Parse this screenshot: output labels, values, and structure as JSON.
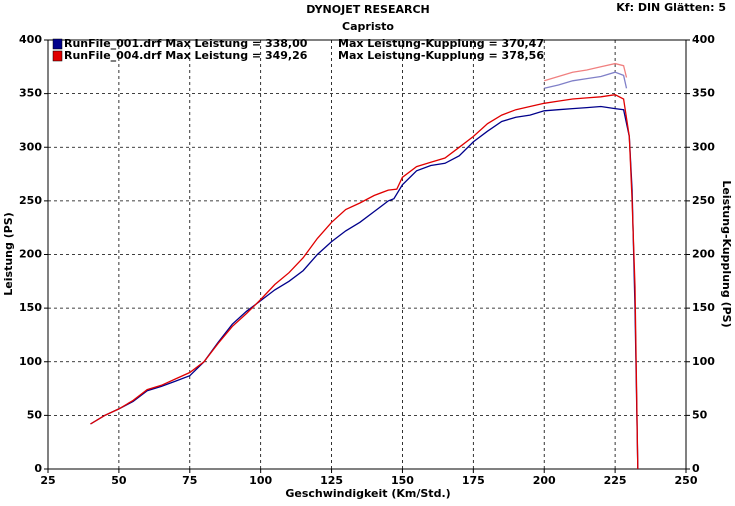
{
  "chart_data": {
    "type": "line",
    "title": "DYNOJET RESEARCH",
    "subtitle": "Capristo",
    "settings_label": "Kf: DIN  Glätten: 5",
    "x_label": "Geschwindigkeit (Km/Std.)",
    "y_label": "Leistung (PS)",
    "y2_label": "Leistung-Kupplung (PS)",
    "xlim": [
      25,
      250
    ],
    "xticks": [
      25,
      50,
      75,
      100,
      125,
      150,
      175,
      200,
      225,
      250
    ],
    "ylim": [
      0,
      400
    ],
    "yticks": [
      0,
      50,
      100,
      150,
      200,
      250,
      300,
      350,
      400
    ],
    "y2lim": [
      0,
      400
    ],
    "y2ticks": [
      0,
      50,
      100,
      150,
      200,
      250,
      300,
      350,
      400
    ],
    "grid": true,
    "series": [
      {
        "name": "RunFile_001.drf Max Leistung = 338,00",
        "color": "#00008b",
        "x": [
          40,
          45,
          50,
          55,
          60,
          65,
          70,
          75,
          80,
          85,
          90,
          95,
          100,
          105,
          110,
          115,
          120,
          125,
          130,
          135,
          140,
          145,
          147,
          150,
          155,
          160,
          165,
          170,
          175,
          180,
          185,
          190,
          195,
          200,
          205,
          210,
          215,
          220,
          225,
          228,
          230,
          231,
          232,
          233
        ],
        "values": [
          42,
          50,
          56,
          63,
          73,
          77,
          82,
          87,
          100,
          118,
          135,
          147,
          157,
          167,
          175,
          185,
          200,
          212,
          222,
          230,
          240,
          250,
          252,
          265,
          278,
          283,
          285,
          292,
          305,
          315,
          324,
          328,
          330,
          334,
          335,
          336,
          337,
          338,
          336,
          335,
          310,
          260,
          150,
          0
        ]
      },
      {
        "name": "RunFile_004.drf Max Leistung = 349,26",
        "color": "#e00000",
        "x": [
          40,
          45,
          50,
          55,
          60,
          65,
          70,
          75,
          80,
          85,
          90,
          95,
          100,
          105,
          110,
          115,
          120,
          125,
          130,
          135,
          140,
          145,
          148,
          150,
          155,
          160,
          165,
          170,
          175,
          180,
          185,
          190,
          195,
          200,
          205,
          210,
          215,
          220,
          225,
          228,
          230,
          231,
          232,
          233
        ],
        "values": [
          42,
          50,
          56,
          64,
          74,
          78,
          84,
          90,
          100,
          117,
          133,
          145,
          158,
          172,
          183,
          197,
          215,
          230,
          242,
          248,
          255,
          260,
          261,
          272,
          282,
          286,
          290,
          300,
          310,
          322,
          330,
          335,
          338,
          341,
          343,
          345,
          346,
          347,
          349,
          345,
          310,
          250,
          170,
          0
        ]
      },
      {
        "name": "Max Leistung-Kupplung = 370,47",
        "color": "#8080c8",
        "axis": "y2",
        "x": [
          200,
          205,
          210,
          215,
          220,
          225,
          228,
          229
        ],
        "values": [
          355,
          358,
          362,
          364,
          366,
          370,
          367,
          355
        ]
      },
      {
        "name": "Max Leistung-Kupplung = 378,56",
        "color": "#f08080",
        "axis": "y2",
        "x": [
          200,
          205,
          210,
          215,
          220,
          225,
          228,
          229
        ],
        "values": [
          362,
          366,
          370,
          372,
          375,
          378,
          376,
          365
        ]
      }
    ]
  }
}
